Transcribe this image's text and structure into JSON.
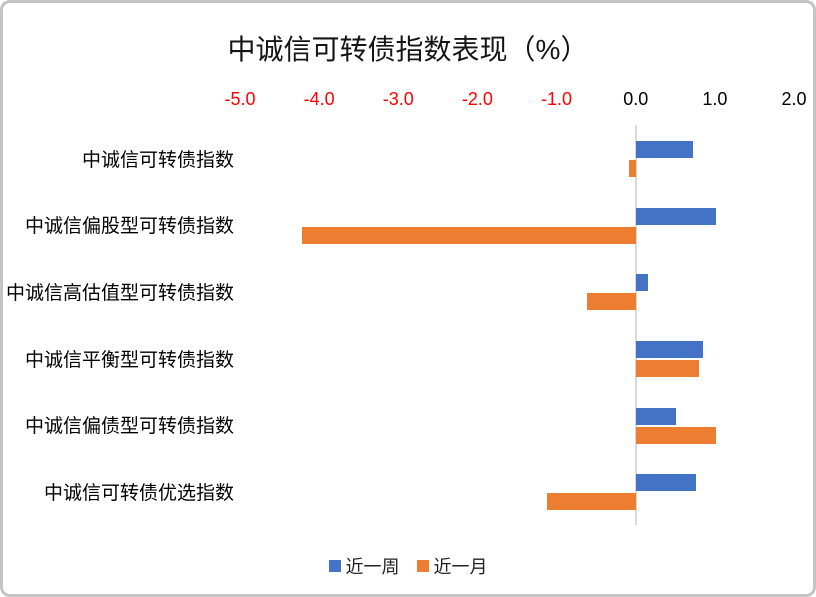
{
  "chart_data": {
    "type": "bar",
    "orientation": "horizontal",
    "title": "中诚信可转债指数表现（%）",
    "categories": [
      "中诚信可转债指数",
      "中诚信偏股型可转债指数",
      "中诚信高估值型可转债指数",
      "中诚信平衡型可转债指数",
      "中诚信偏债型可转债指数",
      "中诚信可转债优选指数"
    ],
    "series": [
      {
        "name": "近一周",
        "color": "#4472C4",
        "values": [
          0.73,
          1.02,
          0.16,
          0.85,
          0.51,
          0.76
        ]
      },
      {
        "name": "近一月",
        "color": "#ED7D31",
        "values": [
          -0.09,
          -4.22,
          -0.62,
          0.8,
          1.01,
          -1.12
        ]
      }
    ],
    "x_ticks": [
      -5.0,
      -4.0,
      -3.0,
      -2.0,
      -1.0,
      0.0,
      1.0,
      2.0
    ],
    "xlim": [
      -5.0,
      2.0
    ],
    "grid": false,
    "legend_position": "bottom",
    "negative_tick_color": "#FF0000",
    "positive_tick_color": "#000000",
    "axis_line_color": "#D9D9D9"
  }
}
